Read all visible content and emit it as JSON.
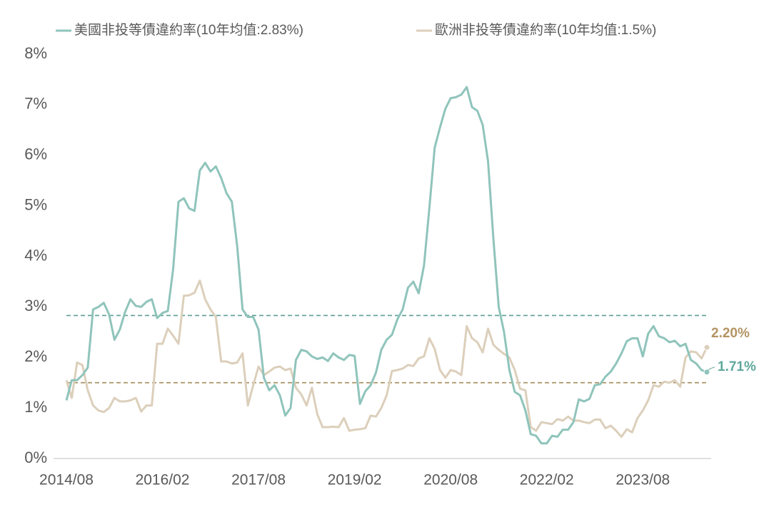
{
  "chart_data": {
    "type": "line",
    "categories": [
      "2014/08",
      null,
      null,
      null,
      null,
      null,
      null,
      null,
      null,
      null,
      null,
      null,
      null,
      null,
      null,
      null,
      null,
      null,
      "2016/02",
      null,
      null,
      null,
      null,
      null,
      null,
      null,
      null,
      null,
      null,
      null,
      null,
      null,
      null,
      null,
      null,
      null,
      "2017/08",
      null,
      null,
      null,
      null,
      null,
      null,
      null,
      null,
      null,
      null,
      null,
      null,
      null,
      null,
      null,
      null,
      null,
      "2019/02",
      null,
      null,
      null,
      null,
      null,
      null,
      null,
      null,
      null,
      null,
      null,
      null,
      null,
      null,
      null,
      null,
      null,
      "2020/08",
      null,
      null,
      null,
      null,
      null,
      null,
      null,
      null,
      null,
      null,
      null,
      null,
      null,
      null,
      null,
      null,
      null,
      "2022/02",
      null,
      null,
      null,
      null,
      null,
      null,
      null,
      null,
      null,
      null,
      null,
      null,
      null,
      null,
      null,
      null,
      null,
      "2023/08",
      null,
      null,
      null,
      null,
      null,
      null,
      null,
      null,
      null,
      null,
      null,
      null
    ],
    "series": [
      {
        "name": "美國非投等債違約率(10年均值:2.83%)",
        "color": "#8fc4bb",
        "label_color": "#5fa89c",
        "values": [
          1.15,
          1.55,
          1.55,
          1.65,
          1.8,
          2.95,
          3.0,
          3.08,
          2.85,
          2.35,
          2.55,
          2.9,
          3.15,
          3.02,
          3.0,
          3.1,
          3.15,
          2.78,
          2.88,
          2.92,
          3.75,
          5.08,
          5.15,
          4.95,
          4.9,
          5.7,
          5.85,
          5.68,
          5.78,
          5.55,
          5.25,
          5.08,
          4.2,
          2.95,
          2.8,
          2.8,
          2.55,
          1.6,
          1.35,
          1.45,
          1.25,
          0.85,
          1.0,
          1.95,
          2.15,
          2.12,
          2.02,
          1.97,
          2.0,
          1.93,
          2.08,
          2.0,
          1.95,
          2.05,
          2.03,
          1.08,
          1.33,
          1.45,
          1.7,
          2.15,
          2.35,
          2.45,
          2.75,
          2.95,
          3.38,
          3.5,
          3.27,
          3.82,
          4.95,
          6.15,
          6.55,
          6.92,
          7.13,
          7.15,
          7.2,
          7.35,
          6.95,
          6.88,
          6.6,
          5.88,
          4.35,
          3.0,
          2.5,
          1.75,
          1.32,
          1.25,
          0.95,
          0.48,
          0.45,
          0.3,
          0.3,
          0.45,
          0.43,
          0.57,
          0.57,
          0.72,
          1.17,
          1.13,
          1.18,
          1.45,
          1.47,
          1.62,
          1.72,
          1.88,
          2.08,
          2.32,
          2.38,
          2.38,
          2.02,
          2.47,
          2.62,
          2.42,
          2.38,
          2.3,
          2.33,
          2.22,
          2.27,
          1.95,
          1.88,
          1.75,
          1.71
        ],
        "value_labels": [
          null,
          null,
          null,
          null,
          null,
          null,
          null,
          null,
          null,
          null,
          null,
          null,
          null,
          null,
          null,
          null,
          null,
          null,
          null,
          null,
          null,
          null,
          null,
          null,
          null,
          null,
          null,
          null,
          null,
          null,
          null,
          null,
          null,
          null,
          null,
          null,
          null,
          null,
          null,
          null,
          null,
          null,
          null,
          null,
          null,
          null,
          null,
          null,
          null,
          null,
          null,
          null,
          null,
          null,
          null,
          null,
          null,
          null,
          null,
          null,
          null,
          null,
          null,
          null,
          null,
          null,
          null,
          null,
          null,
          null,
          null,
          null,
          null,
          null,
          null,
          null,
          null,
          null,
          null,
          null,
          null,
          null,
          null,
          null,
          null,
          null,
          null,
          null,
          null,
          null,
          null,
          null,
          null,
          null,
          null,
          null,
          null,
          null,
          null,
          null,
          null,
          null,
          null,
          null,
          null,
          null,
          null,
          null,
          null,
          null,
          null,
          null,
          null,
          null,
          null,
          null,
          null,
          null,
          null,
          null,
          "1.71%"
        ]
      },
      {
        "name": "歐洲非投等債違約率(10年均值:1.5%)",
        "color": "#dccfbb",
        "label_color": "#b39463",
        "values": [
          1.55,
          1.2,
          1.9,
          1.85,
          1.35,
          1.05,
          0.95,
          0.92,
          1.0,
          1.2,
          1.13,
          1.13,
          1.15,
          1.2,
          0.93,
          1.05,
          1.05,
          2.27,
          2.27,
          2.57,
          2.43,
          2.27,
          3.22,
          3.23,
          3.28,
          3.52,
          3.15,
          2.95,
          2.8,
          1.92,
          1.92,
          1.88,
          1.9,
          2.08,
          1.05,
          1.45,
          1.82,
          1.65,
          1.72,
          1.8,
          1.82,
          1.75,
          1.78,
          1.4,
          1.27,
          1.05,
          1.4,
          0.88,
          0.62,
          0.62,
          0.63,
          0.62,
          0.8,
          0.55,
          0.57,
          0.58,
          0.6,
          0.85,
          0.83,
          1.0,
          1.25,
          1.73,
          1.75,
          1.78,
          1.85,
          1.83,
          1.98,
          2.02,
          2.38,
          2.17,
          1.75,
          1.6,
          1.75,
          1.72,
          1.65,
          2.62,
          2.38,
          2.3,
          2.1,
          2.57,
          2.25,
          2.15,
          2.07,
          2.0,
          1.75,
          1.38,
          1.35,
          0.62,
          0.55,
          0.72,
          0.7,
          0.68,
          0.78,
          0.75,
          0.83,
          0.75,
          0.75,
          0.72,
          0.7,
          0.77,
          0.77,
          0.6,
          0.65,
          0.55,
          0.43,
          0.58,
          0.52,
          0.8,
          0.95,
          1.15,
          1.45,
          1.42,
          1.52,
          1.5,
          1.55,
          1.42,
          2.0,
          2.12,
          2.1,
          1.98,
          2.2
        ],
        "value_labels": [
          null,
          null,
          null,
          null,
          null,
          null,
          null,
          null,
          null,
          null,
          null,
          null,
          null,
          null,
          null,
          null,
          null,
          null,
          null,
          null,
          null,
          null,
          null,
          null,
          null,
          null,
          null,
          null,
          null,
          null,
          null,
          null,
          null,
          null,
          null,
          null,
          null,
          null,
          null,
          null,
          null,
          null,
          null,
          null,
          null,
          null,
          null,
          null,
          null,
          null,
          null,
          null,
          null,
          null,
          null,
          null,
          null,
          null,
          null,
          null,
          null,
          null,
          null,
          null,
          null,
          null,
          null,
          null,
          null,
          null,
          null,
          null,
          null,
          null,
          null,
          null,
          null,
          null,
          null,
          null,
          null,
          null,
          null,
          null,
          null,
          null,
          null,
          null,
          null,
          null,
          null,
          null,
          null,
          null,
          null,
          null,
          null,
          null,
          null,
          null,
          null,
          null,
          null,
          null,
          null,
          null,
          null,
          null,
          null,
          null,
          null,
          null,
          null,
          null,
          null,
          null,
          null,
          null,
          null,
          null,
          "2.20%"
        ]
      }
    ],
    "reference_lines": [
      {
        "value": 2.83,
        "color": "#5c9e94"
      },
      {
        "value": 1.5,
        "color": "#a48c5c"
      }
    ],
    "ylim": [
      0,
      8
    ],
    "yticks": [
      {
        "value": 0,
        "label": "0%"
      },
      {
        "value": 1,
        "label": "1%"
      },
      {
        "value": 2,
        "label": "2%"
      },
      {
        "value": 3,
        "label": "3%"
      },
      {
        "value": 4,
        "label": "4%"
      },
      {
        "value": 5,
        "label": "5%"
      },
      {
        "value": 6,
        "label": "6%"
      },
      {
        "value": 7,
        "label": "7%"
      },
      {
        "value": 8,
        "label": "8%"
      }
    ],
    "grid": false,
    "legend": "top"
  }
}
